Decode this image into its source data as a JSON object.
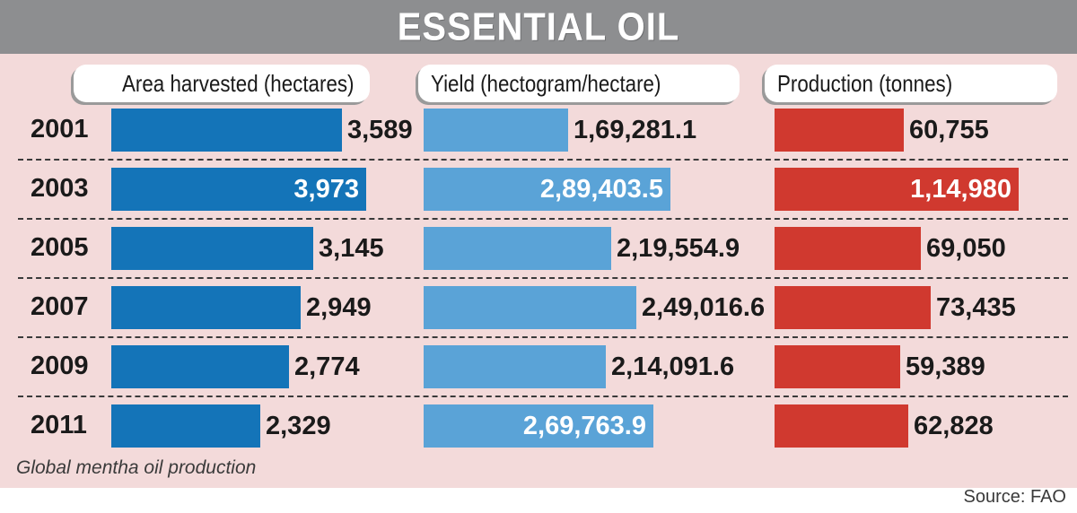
{
  "title": "ESSENTIAL OIL",
  "footnote": "Global mentha oil production",
  "source": "Source: FAO",
  "colors": {
    "title_bar": "#8d8e90",
    "panel": "#f3dada",
    "area": "#1474b8",
    "yield": "#5aa3d7",
    "production": "#d0392f"
  },
  "chart_data": [
    {
      "type": "bar",
      "orientation": "horizontal",
      "title": "Area harvested (hectares)",
      "categories": [
        "2001",
        "2003",
        "2005",
        "2007",
        "2009",
        "2011"
      ],
      "values": [
        3589,
        3973,
        3145,
        2949,
        2774,
        2329
      ],
      "labels": [
        "3,589",
        "3,973",
        "3,145",
        "2,949",
        "2,774",
        "2,329"
      ]
    },
    {
      "type": "bar",
      "orientation": "horizontal",
      "title": "Yield (hectogram/hectare)",
      "categories": [
        "2001",
        "2003",
        "2005",
        "2007",
        "2009",
        "2011"
      ],
      "values": [
        169281.1,
        289403.5,
        219554.9,
        249016.6,
        214091.6,
        269763.9
      ],
      "labels": [
        "1,69,281.1",
        "2,89,403.5",
        "2,19,554.9",
        "2,49,016.6",
        "2,14,091.6",
        "2,69,763.9"
      ]
    },
    {
      "type": "bar",
      "orientation": "horizontal",
      "title": "Production (tonnes)",
      "categories": [
        "2001",
        "2003",
        "2005",
        "2007",
        "2009",
        "2011"
      ],
      "values": [
        60755,
        114980,
        69050,
        73435,
        59389,
        62828
      ],
      "labels": [
        "60,755",
        "1,14,980",
        "69,050",
        "73,435",
        "59,389",
        "62,828"
      ]
    }
  ]
}
